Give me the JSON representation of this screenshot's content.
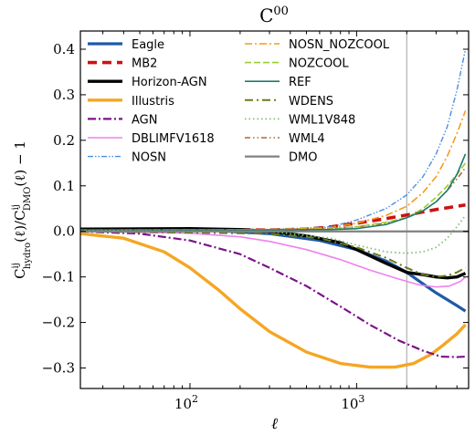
{
  "chart_data": {
    "type": "line",
    "title": "C",
    "title_sup": "00",
    "xlabel": "ℓ",
    "ylabel_parts": {
      "c": "C",
      "num_sup": "ij",
      "num_sub": "hydro",
      "arg": "(ℓ)/",
      "den_sup": "ij",
      "den_sub": "DMO",
      "tail": "(ℓ) − 1"
    },
    "xscale": "log",
    "xlim": [
      22,
      4700
    ],
    "ylim": [
      -0.345,
      0.44
    ],
    "xticks": [
      {
        "value": 100,
        "base": "10",
        "exp": "2"
      },
      {
        "value": 1000,
        "base": "10",
        "exp": "3"
      }
    ],
    "yticks": [
      {
        "value": -0.3,
        "label": "−0.3"
      },
      {
        "value": -0.2,
        "label": "−0.2"
      },
      {
        "value": -0.1,
        "label": "−0.1"
      },
      {
        "value": 0.0,
        "label": "0.0"
      },
      {
        "value": 0.1,
        "label": "0.1"
      },
      {
        "value": 0.2,
        "label": "0.2"
      },
      {
        "value": 0.3,
        "label": "0.3"
      },
      {
        "value": 0.4,
        "label": "0.4"
      }
    ],
    "vline_x": 2000,
    "legend_placement": "top-left",
    "series": [
      {
        "name": "Eagle",
        "color": "#1f5aa6",
        "dash": "",
        "width": 3.2,
        "x": [
          22,
          100,
          300,
          600,
          1000,
          1500,
          2000,
          2500,
          3000,
          3500,
          4000,
          4500
        ],
        "y": [
          0.005,
          0.005,
          -0.005,
          -0.02,
          -0.04,
          -0.065,
          -0.09,
          -0.115,
          -0.135,
          -0.15,
          -0.163,
          -0.175
        ]
      },
      {
        "name": "MB2",
        "color": "#cc1111",
        "dash": "10,6",
        "width": 3.6,
        "x": [
          22,
          100,
          300,
          500,
          700,
          1000,
          1500,
          2000,
          3000,
          4500
        ],
        "y": [
          0.004,
          0.004,
          0.003,
          0.005,
          0.01,
          0.018,
          0.028,
          0.036,
          0.048,
          0.058
        ]
      },
      {
        "name": "Horizon-AGN",
        "color": "#000000",
        "dash": "",
        "width": 3.4,
        "x": [
          22,
          100,
          200,
          300,
          500,
          800,
          1000,
          1500,
          2000,
          2500,
          3000,
          3500,
          4000,
          4500
        ],
        "y": [
          0.005,
          0.006,
          0.004,
          0.0,
          -0.01,
          -0.025,
          -0.04,
          -0.07,
          -0.09,
          -0.095,
          -0.1,
          -0.102,
          -0.1,
          -0.092
        ]
      },
      {
        "name": "Illustris",
        "color": "#f5a623",
        "dash": "",
        "width": 3.4,
        "x": [
          22,
          40,
          70,
          100,
          150,
          200,
          300,
          500,
          800,
          1200,
          1700,
          2200,
          2800,
          3300,
          4000,
          4500
        ],
        "y": [
          -0.005,
          -0.015,
          -0.045,
          -0.08,
          -0.13,
          -0.17,
          -0.22,
          -0.265,
          -0.29,
          -0.298,
          -0.298,
          -0.29,
          -0.27,
          -0.25,
          -0.225,
          -0.205
        ]
      },
      {
        "name": "AGN",
        "color": "#7a1487",
        "dash": "9,3,2,3",
        "width": 2.2,
        "x": [
          22,
          50,
          100,
          200,
          300,
          500,
          800,
          1200,
          1800,
          2500,
          3200,
          4000,
          4500
        ],
        "y": [
          0.0,
          -0.005,
          -0.02,
          -0.05,
          -0.08,
          -0.12,
          -0.165,
          -0.205,
          -0.24,
          -0.262,
          -0.275,
          -0.276,
          -0.275
        ]
      },
      {
        "name": "DBLIMFV1618",
        "color": "#ee82ee",
        "dash": "",
        "width": 1.6,
        "x": [
          22,
          100,
          200,
          300,
          500,
          800,
          1200,
          1800,
          2400,
          3000,
          3600,
          4200,
          4500
        ],
        "y": [
          0.0,
          -0.004,
          -0.012,
          -0.022,
          -0.04,
          -0.062,
          -0.085,
          -0.105,
          -0.118,
          -0.122,
          -0.12,
          -0.11,
          -0.1
        ]
      },
      {
        "name": "NOSN",
        "color": "#4a8fe0",
        "dash": "6,2,1.5,2,1.5,2",
        "width": 1.4,
        "x": [
          22,
          300,
          700,
          1000,
          1500,
          2000,
          2500,
          3000,
          3500,
          4000,
          4500
        ],
        "y": [
          0.003,
          0.004,
          0.01,
          0.025,
          0.05,
          0.08,
          0.12,
          0.17,
          0.23,
          0.31,
          0.4
        ]
      },
      {
        "name": "NOSN_NOZCOOL",
        "color": "#f59a1e",
        "dash": "8,3,2,3",
        "width": 1.6,
        "x": [
          22,
          300,
          700,
          1000,
          1500,
          2000,
          2500,
          3000,
          3500,
          4000,
          4500
        ],
        "y": [
          0.003,
          0.004,
          0.008,
          0.018,
          0.035,
          0.055,
          0.085,
          0.12,
          0.165,
          0.215,
          0.265
        ]
      },
      {
        "name": "NOZCOOL",
        "color": "#9acd32",
        "dash": "7,3",
        "width": 1.6,
        "x": [
          22,
          300,
          700,
          1000,
          1500,
          2000,
          2500,
          3000,
          3500,
          4000,
          4500
        ],
        "y": [
          0.003,
          0.004,
          0.005,
          0.01,
          0.02,
          0.03,
          0.05,
          0.075,
          0.1,
          0.125,
          0.15
        ]
      },
      {
        "name": "REF",
        "color": "#1f7a6a",
        "dash": "",
        "width": 1.6,
        "x": [
          22,
          300,
          700,
          1000,
          1500,
          2000,
          2500,
          3000,
          3500,
          4000,
          4500
        ],
        "y": [
          0.003,
          0.003,
          0.004,
          0.006,
          0.015,
          0.03,
          0.045,
          0.065,
          0.09,
          0.125,
          0.17
        ]
      },
      {
        "name": "WDENS",
        "color": "#6b7a1a",
        "dash": "9,4,2,4",
        "width": 2.0,
        "x": [
          22,
          300,
          600,
          1000,
          1500,
          2000,
          2500,
          3000,
          3500,
          4000,
          4500
        ],
        "y": [
          0.0,
          -0.005,
          -0.015,
          -0.035,
          -0.058,
          -0.08,
          -0.095,
          -0.1,
          -0.097,
          -0.09,
          -0.08
        ]
      },
      {
        "name": "WML1V848",
        "color": "#7fbf6f",
        "dash": "1.5,3",
        "width": 1.8,
        "x": [
          22,
          300,
          700,
          1000,
          1500,
          2000,
          2500,
          3000,
          3500,
          4000,
          4500
        ],
        "y": [
          0.002,
          0.0,
          -0.015,
          -0.03,
          -0.045,
          -0.048,
          -0.045,
          -0.035,
          -0.015,
          0.01,
          0.035
        ]
      },
      {
        "name": "WML4",
        "color": "#b5653a",
        "dash": "6,3,1.5,3,1.5,3",
        "width": 1.6,
        "x": [
          22,
          300,
          700,
          1000,
          1500,
          2000,
          2500,
          3000,
          3500,
          4000,
          4500
        ],
        "y": [
          0.003,
          0.004,
          0.006,
          0.01,
          0.018,
          0.03,
          0.045,
          0.065,
          0.09,
          0.115,
          0.14
        ]
      },
      {
        "name": "DMO",
        "color": "#808080",
        "dash": "",
        "width": 2.2,
        "x": [
          22,
          4700
        ],
        "y": [
          0.0,
          0.0
        ]
      }
    ]
  }
}
